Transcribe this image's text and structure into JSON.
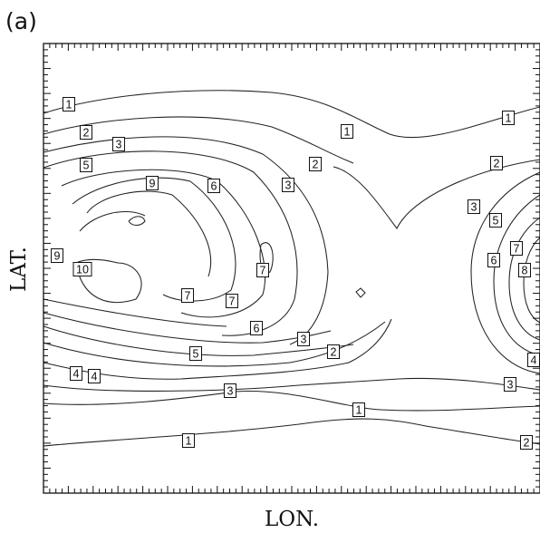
{
  "chart_data": {
    "type": "contour",
    "panel_label": "(a)",
    "xlabel": "LON.",
    "ylabel": "LAT.",
    "grid": false,
    "legend": "none",
    "contour_levels": [
      1,
      2,
      3,
      4,
      5,
      6,
      7,
      8,
      9,
      10
    ],
    "contour_labels": [
      "1",
      "1",
      "1",
      "1",
      "1",
      "2",
      "2",
      "2",
      "2",
      "2",
      "3",
      "3",
      "3",
      "3",
      "3",
      "3",
      "4",
      "4",
      "4",
      "5",
      "5",
      "5",
      "6",
      "6",
      "6",
      "7",
      "7",
      "7",
      "7",
      "8",
      "9",
      "9",
      "10"
    ]
  }
}
